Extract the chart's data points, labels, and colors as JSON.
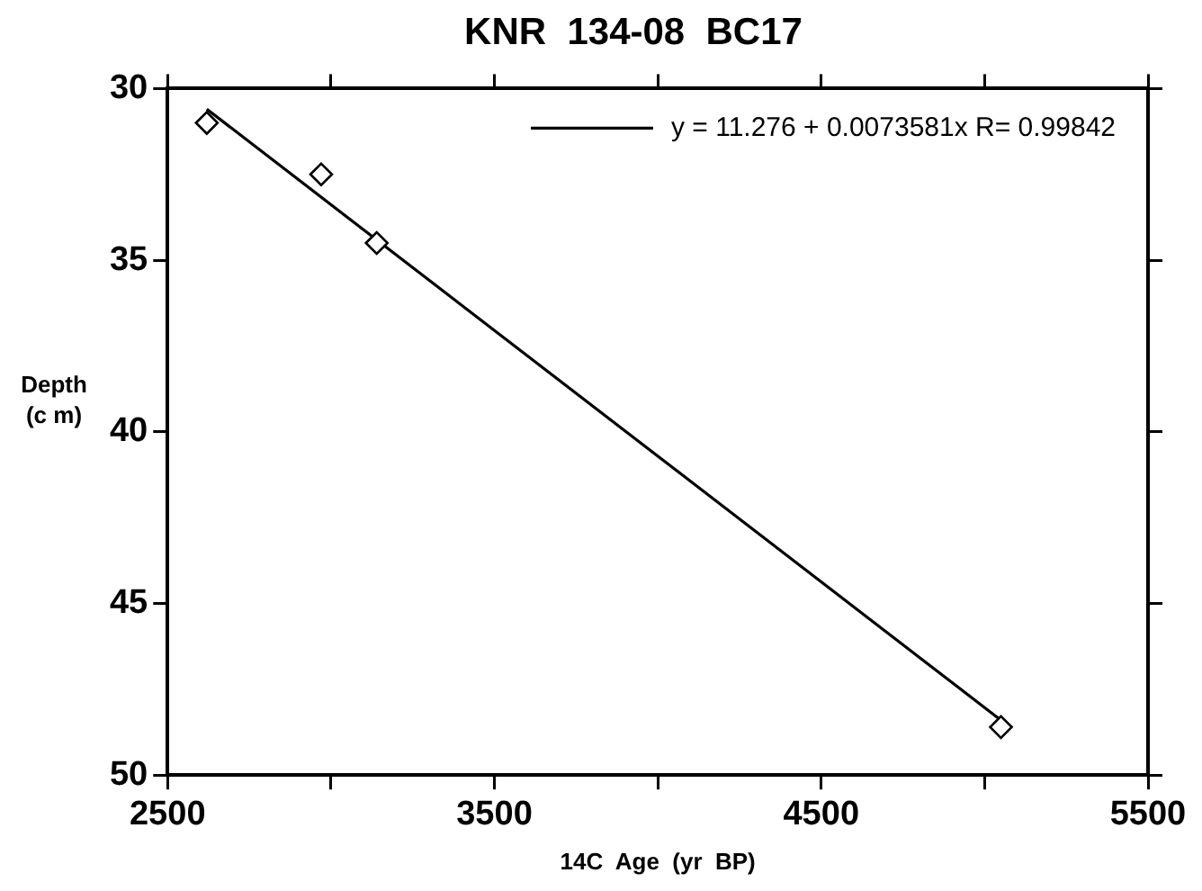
{
  "chart_data": {
    "type": "scatter",
    "title": "KNR  134-08  BC17",
    "xlabel": "14C  Age  (yr  BP)",
    "ylabel": "Depth (c m)",
    "xlim": [
      2500,
      5500
    ],
    "xticks": [
      2500,
      {
        "value": 3000,
        "label": null
      },
      3500,
      {
        "value": 4000,
        "label": null
      },
      4500,
      {
        "value": 5000,
        "label": null
      },
      5500
    ],
    "ylim": [
      50,
      30
    ],
    "yticks": [
      30,
      35,
      40,
      45,
      50
    ],
    "grid": false,
    "legend": "top right",
    "series": [
      {
        "color": "#000000",
        "marker": "diamond",
        "x": [
          2620,
          2970,
          3140,
          5050
        ],
        "values": [
          31.0,
          32.5,
          34.5,
          48.6
        ]
      },
      {
        "type": "line",
        "name": "y = 11.276 + 0.0073581x R= 0.99842",
        "color": "#000000",
        "marker": "none",
        "line_style": "solid",
        "x": [
          2620,
          5050
        ],
        "values": [
          30.6,
          48.4
        ]
      }
    ]
  }
}
